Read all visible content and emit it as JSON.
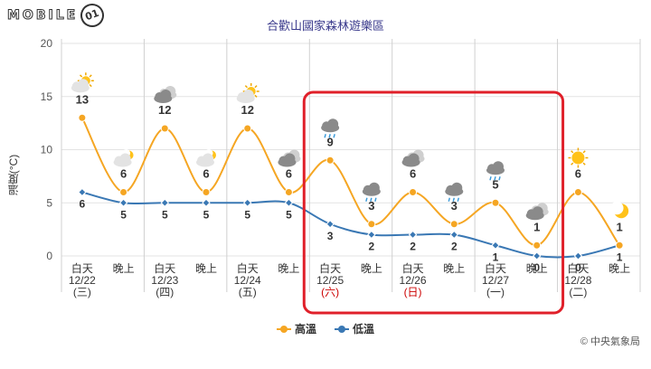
{
  "logo": {
    "text": "MOBILE",
    "badge": "01"
  },
  "colors": {
    "high": "#f5a623",
    "low": "#3a78b4",
    "grid": "#e3e3e3",
    "highlight": "#e0202a",
    "weekend": "#cc0000"
  },
  "chart_data": {
    "type": "line",
    "title": "合歡山國家森林遊樂區",
    "ylabel": "溫度(°C)",
    "ylim": [
      0,
      20
    ],
    "yticks": [
      0,
      5,
      10,
      15,
      20
    ],
    "grid": true,
    "legend_position": "bottom",
    "x": [
      {
        "period": "白天",
        "date": "12/22",
        "weekday": "(三)",
        "weekend": false
      },
      {
        "period": "晚上"
      },
      {
        "period": "白天",
        "date": "12/23",
        "weekday": "(四)",
        "weekend": false
      },
      {
        "period": "晚上"
      },
      {
        "period": "白天",
        "date": "12/24",
        "weekday": "(五)",
        "weekend": false
      },
      {
        "period": "晚上"
      },
      {
        "period": "白天",
        "date": "12/25",
        "weekday": "(六)",
        "weekend": true
      },
      {
        "period": "晚上"
      },
      {
        "period": "白天",
        "date": "12/26",
        "weekday": "(日)",
        "weekend": true
      },
      {
        "period": "晚上"
      },
      {
        "period": "白天",
        "date": "12/27",
        "weekday": "(一)",
        "weekend": false
      },
      {
        "period": "晚上"
      },
      {
        "period": "白天",
        "date": "12/28",
        "weekday": "(二)",
        "weekend": false
      },
      {
        "period": "晚上"
      }
    ],
    "series": [
      {
        "name": "高溫",
        "key": "high",
        "values": [
          13,
          6,
          12,
          6,
          12,
          6,
          9,
          3,
          6,
          3,
          5,
          1,
          6,
          1
        ]
      },
      {
        "name": "低溫",
        "key": "low",
        "values": [
          6,
          5,
          5,
          5,
          5,
          5,
          3,
          2,
          2,
          2,
          1,
          0,
          0,
          1
        ]
      }
    ],
    "weather_icons": [
      "sun-cloud",
      "moon-cloud",
      "cloudy",
      "moon-cloud",
      "sun-cloud",
      "cloudy",
      "rain",
      "rain",
      "cloudy",
      "rain",
      "rain",
      "cloudy",
      "sun",
      "moon"
    ],
    "highlight_range": [
      6,
      11
    ]
  },
  "credit": "© 中央氣象局"
}
